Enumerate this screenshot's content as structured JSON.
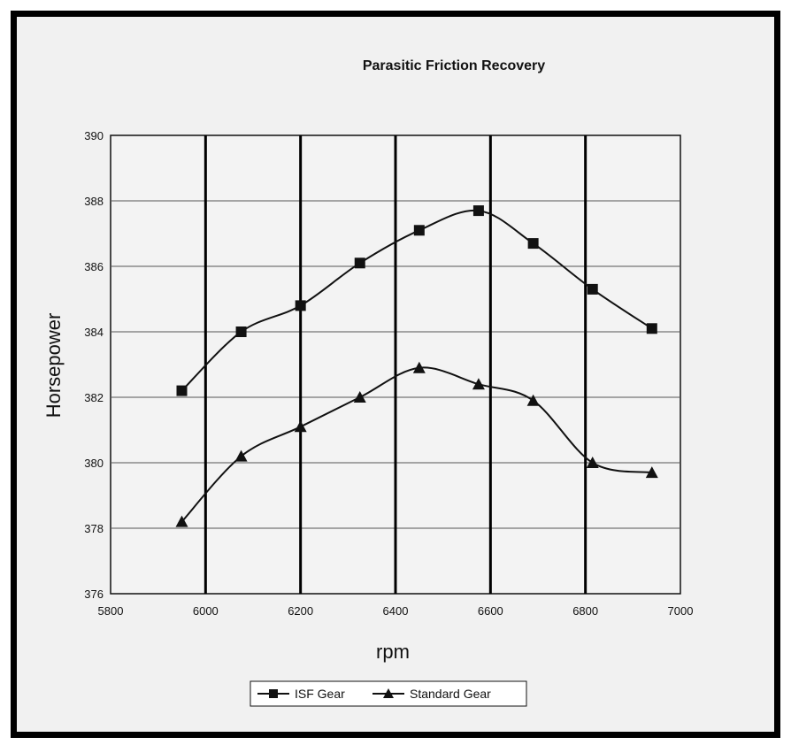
{
  "chart_data": {
    "type": "line",
    "title": "Parasitic Friction Recovery",
    "xlabel": "rpm",
    "ylabel": "Horsepower",
    "xlim": [
      5800,
      7000
    ],
    "ylim": [
      376,
      390
    ],
    "xticks": [
      "5800",
      "6000",
      "6200",
      "6400",
      "6600",
      "6800",
      "7000"
    ],
    "yticks": [
      "376",
      "378",
      "380",
      "382",
      "384",
      "386",
      "388",
      "390"
    ],
    "grid": "horizontal gridlines; heavy vertical lines at 6000, 6200, 6400, 6600, 6800",
    "legend": "bottom",
    "series": [
      {
        "name": "ISF Gear",
        "marker": "square",
        "points": [
          [
            5950,
            382.2
          ],
          [
            6075,
            384.0
          ],
          [
            6200,
            384.8
          ],
          [
            6325,
            386.1
          ],
          [
            6450,
            387.1
          ],
          [
            6575,
            387.7
          ],
          [
            6690,
            386.7
          ],
          [
            6815,
            385.3
          ],
          [
            6940,
            384.1
          ]
        ]
      },
      {
        "name": "Standard Gear",
        "marker": "triangle",
        "points": [
          [
            5950,
            378.2
          ],
          [
            6075,
            380.2
          ],
          [
            6200,
            381.1
          ],
          [
            6325,
            382.0
          ],
          [
            6450,
            382.9
          ],
          [
            6575,
            382.4
          ],
          [
            6690,
            381.9
          ],
          [
            6815,
            380.0
          ],
          [
            6940,
            379.7
          ]
        ]
      }
    ]
  }
}
